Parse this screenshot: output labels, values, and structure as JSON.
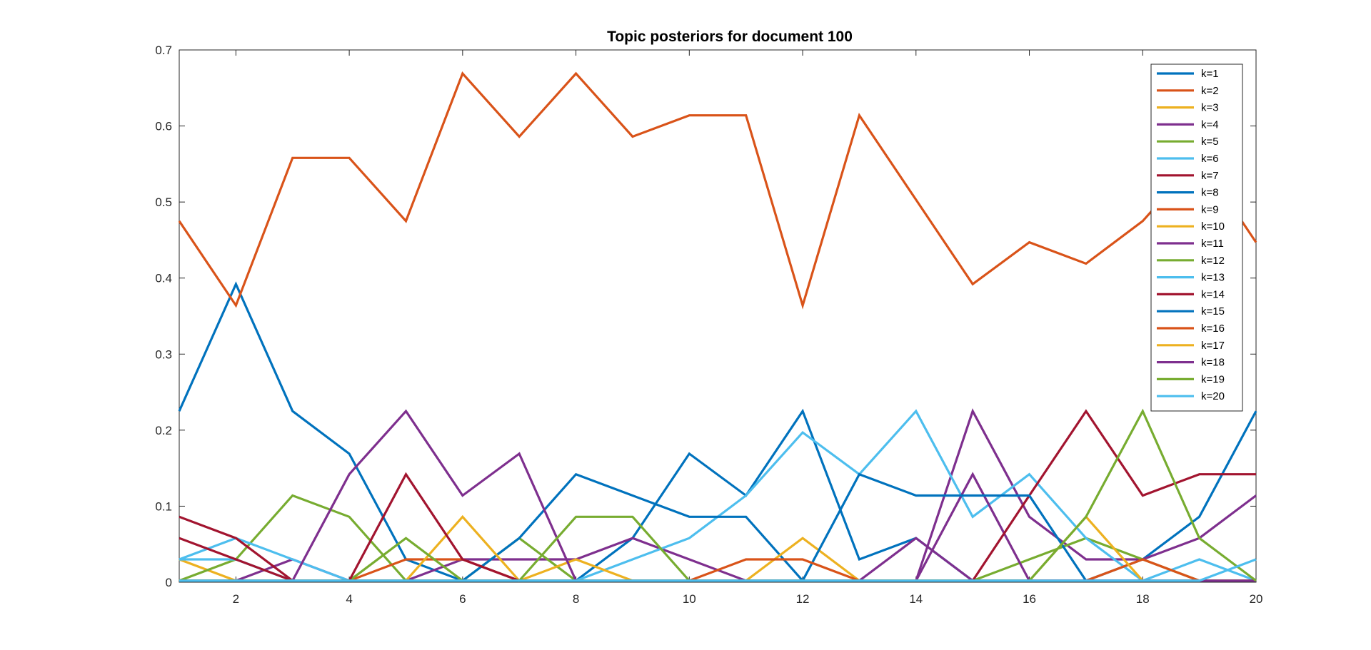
{
  "chart_data": {
    "type": "line",
    "title": "Topic posteriors for document 100",
    "xlabel": "",
    "ylabel": "",
    "xlim": [
      1,
      20
    ],
    "ylim": [
      0,
      0.7
    ],
    "grid": false,
    "legend_position": "top-right",
    "x": [
      1,
      2,
      3,
      4,
      5,
      6,
      7,
      8,
      9,
      10,
      11,
      12,
      13,
      14,
      15,
      16,
      17,
      18,
      19,
      20
    ],
    "x_ticks": [
      2,
      4,
      6,
      8,
      10,
      12,
      14,
      16,
      18,
      20
    ],
    "y_ticks": [
      0,
      0.1,
      0.2,
      0.3,
      0.4,
      0.5,
      0.6,
      0.7
    ],
    "series": [
      {
        "name": "k=1",
        "color": "#0072BD",
        "values": [
          0.225,
          0.392,
          0.225,
          0.169,
          0.03,
          0.002,
          0.002,
          0.002,
          0.058,
          0.169,
          0.114,
          0.225,
          0.03,
          0.058,
          0.002,
          0.002,
          0.002,
          0.03,
          0.086,
          0.225
        ]
      },
      {
        "name": "k=2",
        "color": "#D95319",
        "values": [
          0.475,
          0.364,
          0.558,
          0.558,
          0.475,
          0.669,
          0.586,
          0.669,
          0.586,
          0.614,
          0.614,
          0.364,
          0.614,
          0.503,
          0.392,
          0.447,
          0.419,
          0.475,
          0.558,
          0.447
        ]
      },
      {
        "name": "k=3",
        "color": "#EDB120",
        "values": [
          0.03,
          0.002,
          0.002,
          0.002,
          0.002,
          0.002,
          0.002,
          0.002,
          0.002,
          0.002,
          0.002,
          0.002,
          0.002,
          0.002,
          0.002,
          0.002,
          0.002,
          0.002,
          0.002,
          0.002
        ]
      },
      {
        "name": "k=4",
        "color": "#7E2F8E",
        "values": [
          0.002,
          0.002,
          0.03,
          0.002,
          0.002,
          0.03,
          0.03,
          0.03,
          0.058,
          0.03,
          0.002,
          0.002,
          0.002,
          0.002,
          0.225,
          0.086,
          0.03,
          0.03,
          0.058,
          0.114
        ]
      },
      {
        "name": "k=5",
        "color": "#77AC30",
        "values": [
          0.002,
          0.03,
          0.114,
          0.086,
          0.002,
          0.002,
          0.058,
          0.002,
          0.002,
          0.002,
          0.002,
          0.002,
          0.002,
          0.002,
          0.002,
          0.03,
          0.058,
          0.03,
          0.002,
          0.002
        ]
      },
      {
        "name": "k=6",
        "color": "#4DBEEE",
        "values": [
          0.03,
          0.058,
          0.03,
          0.002,
          0.002,
          0.002,
          0.002,
          0.002,
          0.03,
          0.058,
          0.114,
          0.197,
          0.142,
          0.225,
          0.086,
          0.142,
          0.058,
          0.002,
          0.002,
          0.002
        ]
      },
      {
        "name": "k=7",
        "color": "#A2142F",
        "values": [
          0.086,
          0.058,
          0.002,
          0.002,
          0.002,
          0.002,
          0.002,
          0.002,
          0.002,
          0.002,
          0.002,
          0.002,
          0.002,
          0.002,
          0.002,
          0.002,
          0.002,
          0.002,
          0.002,
          0.002
        ]
      },
      {
        "name": "k=8",
        "color": "#0072BD",
        "values": [
          0.002,
          0.002,
          0.002,
          0.002,
          0.002,
          0.002,
          0.058,
          0.142,
          0.114,
          0.086,
          0.086,
          0.002,
          0.002,
          0.002,
          0.002,
          0.002,
          0.002,
          0.002,
          0.002,
          0.002
        ]
      },
      {
        "name": "k=9",
        "color": "#D95319",
        "values": [
          0.002,
          0.002,
          0.002,
          0.002,
          0.03,
          0.03,
          0.002,
          0.002,
          0.002,
          0.002,
          0.002,
          0.002,
          0.002,
          0.002,
          0.002,
          0.002,
          0.002,
          0.002,
          0.002,
          0.002
        ]
      },
      {
        "name": "k=10",
        "color": "#EDB120",
        "values": [
          0.002,
          0.002,
          0.002,
          0.002,
          0.002,
          0.086,
          0.002,
          0.03,
          0.002,
          0.002,
          0.002,
          0.058,
          0.002,
          0.002,
          0.002,
          0.002,
          0.002,
          0.002,
          0.002,
          0.002
        ]
      },
      {
        "name": "k=11",
        "color": "#7E2F8E",
        "values": [
          0.002,
          0.002,
          0.002,
          0.142,
          0.225,
          0.114,
          0.169,
          0.002,
          0.002,
          0.002,
          0.002,
          0.002,
          0.002,
          0.002,
          0.142,
          0.002,
          0.002,
          0.002,
          0.002,
          0.002
        ]
      },
      {
        "name": "k=12",
        "color": "#77AC30",
        "values": [
          0.002,
          0.002,
          0.002,
          0.002,
          0.058,
          0.002,
          0.002,
          0.086,
          0.086,
          0.002,
          0.002,
          0.002,
          0.002,
          0.002,
          0.002,
          0.002,
          0.002,
          0.002,
          0.002,
          0.002
        ]
      },
      {
        "name": "k=13",
        "color": "#4DBEEE",
        "values": [
          0.03,
          0.03,
          0.002,
          0.002,
          0.002,
          0.002,
          0.002,
          0.002,
          0.002,
          0.002,
          0.002,
          0.002,
          0.002,
          0.002,
          0.002,
          0.002,
          0.002,
          0.002,
          0.03,
          0.002
        ]
      },
      {
        "name": "k=14",
        "color": "#A2142F",
        "values": [
          0.058,
          0.03,
          0.002,
          0.002,
          0.142,
          0.03,
          0.002,
          0.002,
          0.002,
          0.002,
          0.002,
          0.002,
          0.002,
          0.002,
          0.002,
          0.114,
          0.225,
          0.114,
          0.142,
          0.142
        ]
      },
      {
        "name": "k=15",
        "color": "#0072BD",
        "values": [
          0.002,
          0.002,
          0.002,
          0.002,
          0.002,
          0.002,
          0.002,
          0.002,
          0.002,
          0.002,
          0.002,
          0.002,
          0.142,
          0.114,
          0.114,
          0.114,
          0.002,
          0.002,
          0.002,
          0.002
        ]
      },
      {
        "name": "k=16",
        "color": "#D95319",
        "values": [
          0.002,
          0.002,
          0.002,
          0.002,
          0.002,
          0.002,
          0.002,
          0.002,
          0.002,
          0.002,
          0.03,
          0.03,
          0.002,
          0.002,
          0.002,
          0.002,
          0.002,
          0.03,
          0.002,
          0.002
        ]
      },
      {
        "name": "k=17",
        "color": "#EDB120",
        "values": [
          0.002,
          0.002,
          0.002,
          0.002,
          0.002,
          0.002,
          0.002,
          0.002,
          0.002,
          0.002,
          0.002,
          0.002,
          0.002,
          0.002,
          0.002,
          0.002,
          0.086,
          0.002,
          0.002,
          0.002
        ]
      },
      {
        "name": "k=18",
        "color": "#7E2F8E",
        "values": [
          0.002,
          0.002,
          0.002,
          0.002,
          0.002,
          0.002,
          0.002,
          0.002,
          0.002,
          0.002,
          0.002,
          0.002,
          0.002,
          0.058,
          0.002,
          0.002,
          0.002,
          0.002,
          0.002,
          0.002
        ]
      },
      {
        "name": "k=19",
        "color": "#77AC30",
        "values": [
          0.002,
          0.002,
          0.002,
          0.002,
          0.002,
          0.002,
          0.002,
          0.002,
          0.002,
          0.002,
          0.002,
          0.002,
          0.002,
          0.002,
          0.002,
          0.002,
          0.086,
          0.225,
          0.058,
          0.002
        ]
      },
      {
        "name": "k=20",
        "color": "#4DBEEE",
        "values": [
          0.002,
          0.002,
          0.002,
          0.002,
          0.002,
          0.002,
          0.002,
          0.002,
          0.002,
          0.002,
          0.002,
          0.002,
          0.002,
          0.002,
          0.002,
          0.002,
          0.002,
          0.002,
          0.002,
          0.03
        ]
      }
    ]
  }
}
